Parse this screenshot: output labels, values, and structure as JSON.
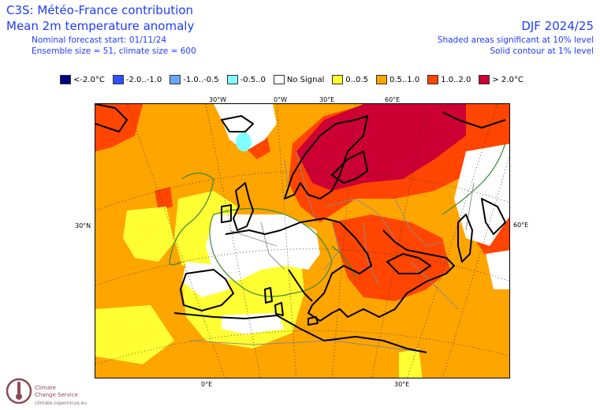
{
  "header": {
    "title": "C3S: Météo-France contribution",
    "subtitle": "Mean 2m temperature anomaly",
    "forecast_start": "Nominal forecast start: 01/11/24",
    "ensemble": "Ensemble size = 51, climate size = 600",
    "season": "DJF 2024/25",
    "significance_shaded": "Shaded areas significant at 10% level",
    "significance_contour": "Solid contour at 1% level"
  },
  "legend": {
    "items": [
      {
        "label": "<-2.0°C",
        "color": "#000080"
      },
      {
        "label": "-2.0..-1.0",
        "color": "#3050ff"
      },
      {
        "label": "-1.0..-0.5",
        "color": "#6aa6ff"
      },
      {
        "label": "-0.5..0",
        "color": "#80ffff"
      },
      {
        "label": "No Signal",
        "color": "#ffffff"
      },
      {
        "label": "0..0.5",
        "color": "#ffff33"
      },
      {
        "label": "0.5..1.0",
        "color": "#ffa500"
      },
      {
        "label": "1.0..2.0",
        "color": "#ff4500"
      },
      {
        "label": "> 2.0°C",
        "color": "#cc0033"
      }
    ]
  },
  "map": {
    "coord_labels": {
      "top": [
        "30°W",
        "0°W",
        "30°E",
        "60°E"
      ],
      "left": "30°N",
      "right": "60°E",
      "bottom": [
        "0°E",
        "30°E"
      ]
    },
    "colors": {
      "ocean_base": "#ffa500",
      "warm": "#ff4500",
      "very_warm": "#cc0033",
      "slight": "#ffff33",
      "no_signal": "#ffffff",
      "cool": "#80ffff",
      "coast": "#000000",
      "border": "#888888",
      "contour": "#3a8a3a"
    }
  },
  "logo": {
    "line1": "Climate",
    "line2": "Change Service",
    "url": "climate.copernicus.eu"
  }
}
